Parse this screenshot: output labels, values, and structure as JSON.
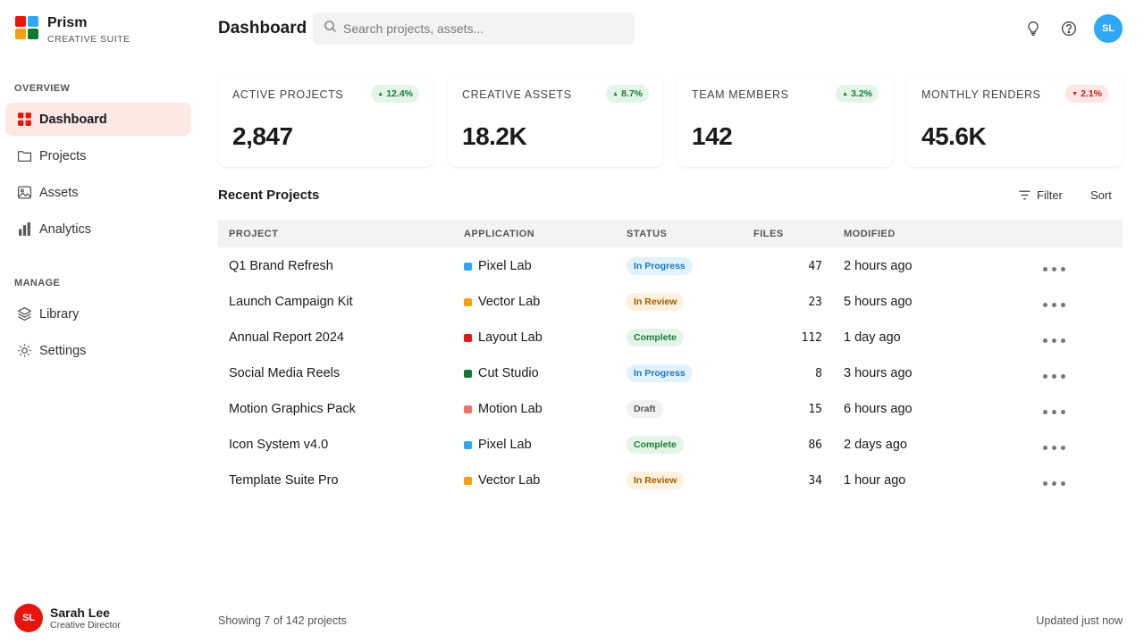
{
  "brand": {
    "name": "Prism",
    "subtitle": "CREATIVE SUITE",
    "logo_colors": [
      "#e8150e",
      "#2ea7f5",
      "#f5a00b",
      "#0d7a32"
    ]
  },
  "sidebar": {
    "overview_label": "OVERVIEW",
    "manage_label": "MANAGE",
    "overview_items": [
      {
        "label": "Dashboard",
        "icon": "grid-icon",
        "active": true
      },
      {
        "label": "Projects",
        "icon": "folder-icon"
      },
      {
        "label": "Assets",
        "icon": "image-icon"
      },
      {
        "label": "Analytics",
        "icon": "bar-chart-icon"
      }
    ],
    "manage_items": [
      {
        "label": "Library",
        "icon": "layers-icon"
      },
      {
        "label": "Settings",
        "icon": "gear-icon"
      }
    ]
  },
  "user": {
    "initials": "SL",
    "name": "Sarah Lee",
    "role": "Creative Director"
  },
  "header": {
    "title": "Dashboard",
    "search_placeholder": "Search projects, assets...",
    "avatar_initials": "SL"
  },
  "stats": [
    {
      "label": "ACTIVE PROJECTS",
      "value": "2,847",
      "change": "12.4%",
      "direction": "up"
    },
    {
      "label": "CREATIVE ASSETS",
      "value": "18.2K",
      "change": "8.7%",
      "direction": "up"
    },
    {
      "label": "TEAM MEMBERS",
      "value": "142",
      "change": "3.2%",
      "direction": "up"
    },
    {
      "label": "MONTHLY RENDERS",
      "value": "45.6K",
      "change": "2.1%",
      "direction": "down"
    }
  ],
  "table": {
    "title": "Recent Projects",
    "filter_label": "Filter",
    "sort_label": "Sort",
    "columns": [
      "PROJECT",
      "APPLICATION",
      "STATUS",
      "FILES",
      "MODIFIED"
    ],
    "rows": [
      {
        "project": "Q1 Brand Refresh",
        "app": "Pixel Lab",
        "app_color": "#2ea7f5",
        "status": "In Progress",
        "files": "47",
        "modified": "2 hours ago"
      },
      {
        "project": "Launch Campaign Kit",
        "app": "Vector Lab",
        "app_color": "#f5a00b",
        "status": "In Review",
        "files": "23",
        "modified": "5 hours ago"
      },
      {
        "project": "Annual Report 2024",
        "app": "Layout Lab",
        "app_color": "#e8150e",
        "status": "Complete",
        "files": "112",
        "modified": "1 day ago"
      },
      {
        "project": "Social Media Reels",
        "app": "Cut Studio",
        "app_color": "#0d7a32",
        "status": "In Progress",
        "files": "8",
        "modified": "3 hours ago"
      },
      {
        "project": "Motion Graphics Pack",
        "app": "Motion Lab",
        "app_color": "#f07266",
        "status": "Draft",
        "files": "15",
        "modified": "6 hours ago"
      },
      {
        "project": "Icon System v4.0",
        "app": "Pixel Lab",
        "app_color": "#2ea7f5",
        "status": "Complete",
        "files": "86",
        "modified": "2 days ago"
      },
      {
        "project": "Template Suite Pro",
        "app": "Vector Lab",
        "app_color": "#f5a00b",
        "status": "In Review",
        "files": "34",
        "modified": "1 hour ago"
      }
    ]
  },
  "footer": {
    "showing": "Showing 7 of 142 projects",
    "updated": "Updated just now"
  },
  "status_colors": {
    "In Progress": {
      "bg": "#e2f2fc",
      "fg": "#1a78c2"
    },
    "In Review": {
      "bg": "#fdf0dc",
      "fg": "#a35c00"
    },
    "Complete": {
      "bg": "#e3f5e8",
      "fg": "#1c7a3a"
    },
    "Draft": {
      "bg": "#f1f1f1",
      "fg": "#555555"
    }
  }
}
